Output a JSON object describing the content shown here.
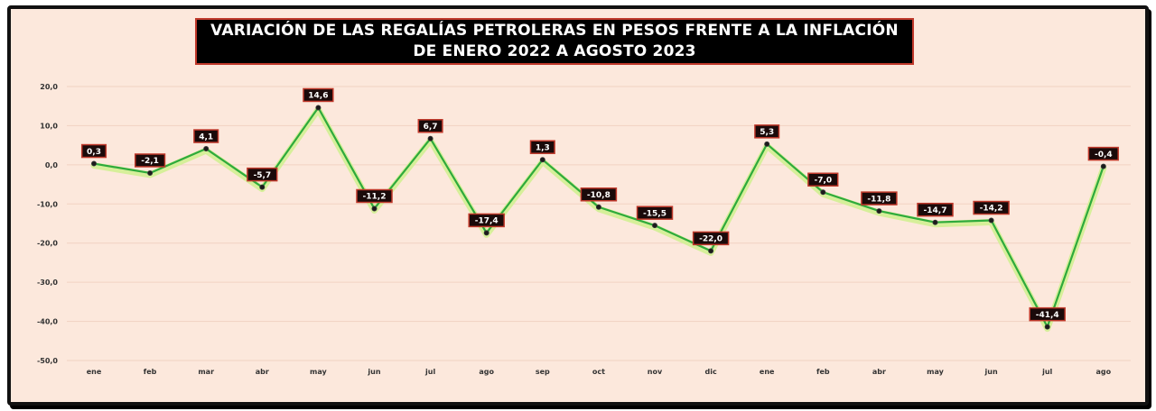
{
  "chart_data": {
    "type": "line",
    "title_lines": [
      "VARIACIÓN DE LAS REGALÍAS PETROLERAS EN PESOS FRENTE A LA INFLACIÓN",
      "DE ENERO 2022 A AGOSTO 2023"
    ],
    "categories": [
      "ene",
      "feb",
      "mar",
      "abr",
      "may",
      "jun",
      "jul",
      "ago",
      "sep",
      "oct",
      "nov",
      "dic",
      "ene",
      "feb",
      "abr",
      "may",
      "jun",
      "jul",
      "ago"
    ],
    "values": [
      0.3,
      -2.1,
      4.1,
      -5.7,
      14.6,
      -11.2,
      6.7,
      -17.4,
      1.3,
      -10.8,
      -15.5,
      -22.0,
      5.3,
      -7.0,
      -11.8,
      -14.7,
      -14.2,
      -41.4,
      -0.4
    ],
    "value_labels": [
      "0,3",
      "-2,1",
      "4,1",
      "-5,7",
      "14,6",
      "-11,2",
      "6,7",
      "-17,4",
      "1,3",
      "-10,8",
      "-15,5",
      "-22,0",
      "5,3",
      "-7,0",
      "-11,8",
      "-14,7",
      "-14,2",
      "-41,4",
      "-0,4"
    ],
    "yticks": [
      20,
      10,
      0,
      -10,
      -20,
      -30,
      -40,
      -50
    ],
    "ytick_labels": [
      "20,0",
      "10,0",
      "0,0",
      "-10,0",
      "-20,0",
      "-30,0",
      "-40,0",
      "-50,0"
    ],
    "ylim": [
      -50,
      20
    ],
    "grid": true,
    "colors": {
      "background": "#fce8dc",
      "line": "#2eaa3c",
      "line_glow": "#d6ef9a",
      "label_box": "#1a0a0a",
      "label_border": "#c0392b",
      "gridline": "#f1d2c2"
    }
  }
}
